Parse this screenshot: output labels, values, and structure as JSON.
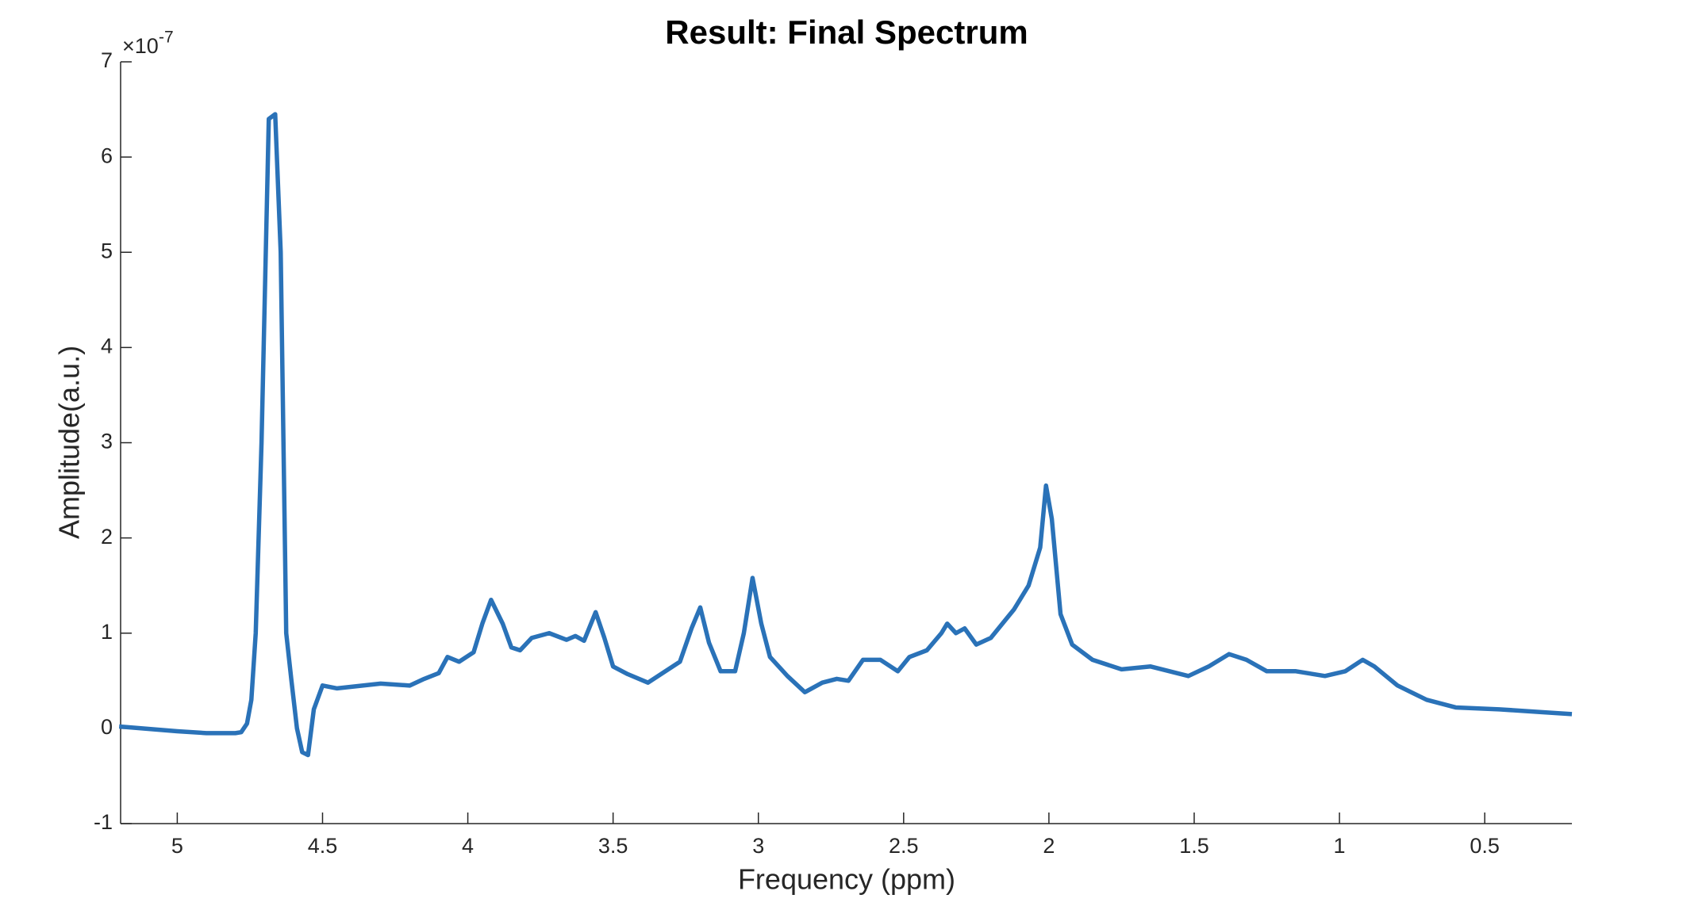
{
  "chart_data": {
    "type": "line",
    "title": "Result: Final Spectrum",
    "xlabel": "Frequency (ppm)",
    "ylabel": "Amplitude(a.u.)",
    "y_exponent_base": "×10",
    "y_exponent": "-7",
    "x": [
      5.2,
      5.0,
      4.9,
      4.8,
      4.78,
      4.76,
      4.745,
      4.73,
      4.71,
      4.685,
      4.663,
      4.644,
      4.625,
      4.607,
      4.588,
      4.57,
      4.55,
      4.53,
      4.5,
      4.45,
      4.3,
      4.2,
      4.15,
      4.1,
      4.07,
      4.03,
      3.98,
      3.95,
      3.92,
      3.88,
      3.85,
      3.82,
      3.78,
      3.72,
      3.66,
      3.63,
      3.6,
      3.56,
      3.53,
      3.5,
      3.45,
      3.38,
      3.33,
      3.27,
      3.23,
      3.2,
      3.17,
      3.13,
      3.08,
      3.05,
      3.02,
      2.99,
      2.96,
      2.9,
      2.84,
      2.78,
      2.73,
      2.69,
      2.64,
      2.58,
      2.52,
      2.48,
      2.42,
      2.37,
      2.35,
      2.32,
      2.29,
      2.25,
      2.2,
      2.12,
      2.07,
      2.03,
      2.01,
      1.99,
      1.96,
      1.92,
      1.85,
      1.75,
      1.65,
      1.52,
      1.45,
      1.38,
      1.32,
      1.25,
      1.15,
      1.05,
      0.98,
      0.92,
      0.88,
      0.8,
      0.7,
      0.6,
      0.45,
      0.3,
      0.2
    ],
    "series": [
      {
        "color": "#2a72b8",
        "values": [
          0.02,
          -0.03,
          -0.05,
          -0.05,
          -0.04,
          0.05,
          0.3,
          1.0,
          3.0,
          6.4,
          6.45,
          5.0,
          1.0,
          0.5,
          0.0,
          -0.25,
          -0.28,
          0.2,
          0.45,
          0.42,
          0.47,
          0.45,
          0.52,
          0.58,
          0.75,
          0.7,
          0.8,
          1.1,
          1.35,
          1.1,
          0.85,
          0.82,
          0.95,
          1.0,
          0.93,
          0.97,
          0.92,
          1.22,
          0.95,
          0.65,
          0.57,
          0.48,
          0.58,
          0.7,
          1.05,
          1.27,
          0.9,
          0.6,
          0.6,
          1.0,
          1.58,
          1.1,
          0.75,
          0.55,
          0.38,
          0.48,
          0.52,
          0.5,
          0.72,
          0.72,
          0.6,
          0.75,
          0.82,
          1.0,
          1.1,
          1.0,
          1.05,
          0.88,
          0.95,
          1.25,
          1.5,
          1.9,
          2.55,
          2.2,
          1.2,
          0.88,
          0.72,
          0.62,
          0.65,
          0.55,
          0.65,
          0.78,
          0.72,
          0.6,
          0.6,
          0.55,
          0.6,
          0.72,
          0.65,
          0.45,
          0.3,
          0.22,
          0.2,
          0.17,
          0.15
        ]
      }
    ],
    "xlim": [
      5.195,
      0.2
    ],
    "xticks": [
      5,
      4.5,
      4,
      3.5,
      3,
      2.5,
      2,
      1.5,
      1,
      0.5
    ],
    "ylim": [
      -1,
      7
    ],
    "yticks": [
      -1,
      0,
      1,
      2,
      3,
      4,
      5,
      6,
      7
    ],
    "grid": false
  }
}
